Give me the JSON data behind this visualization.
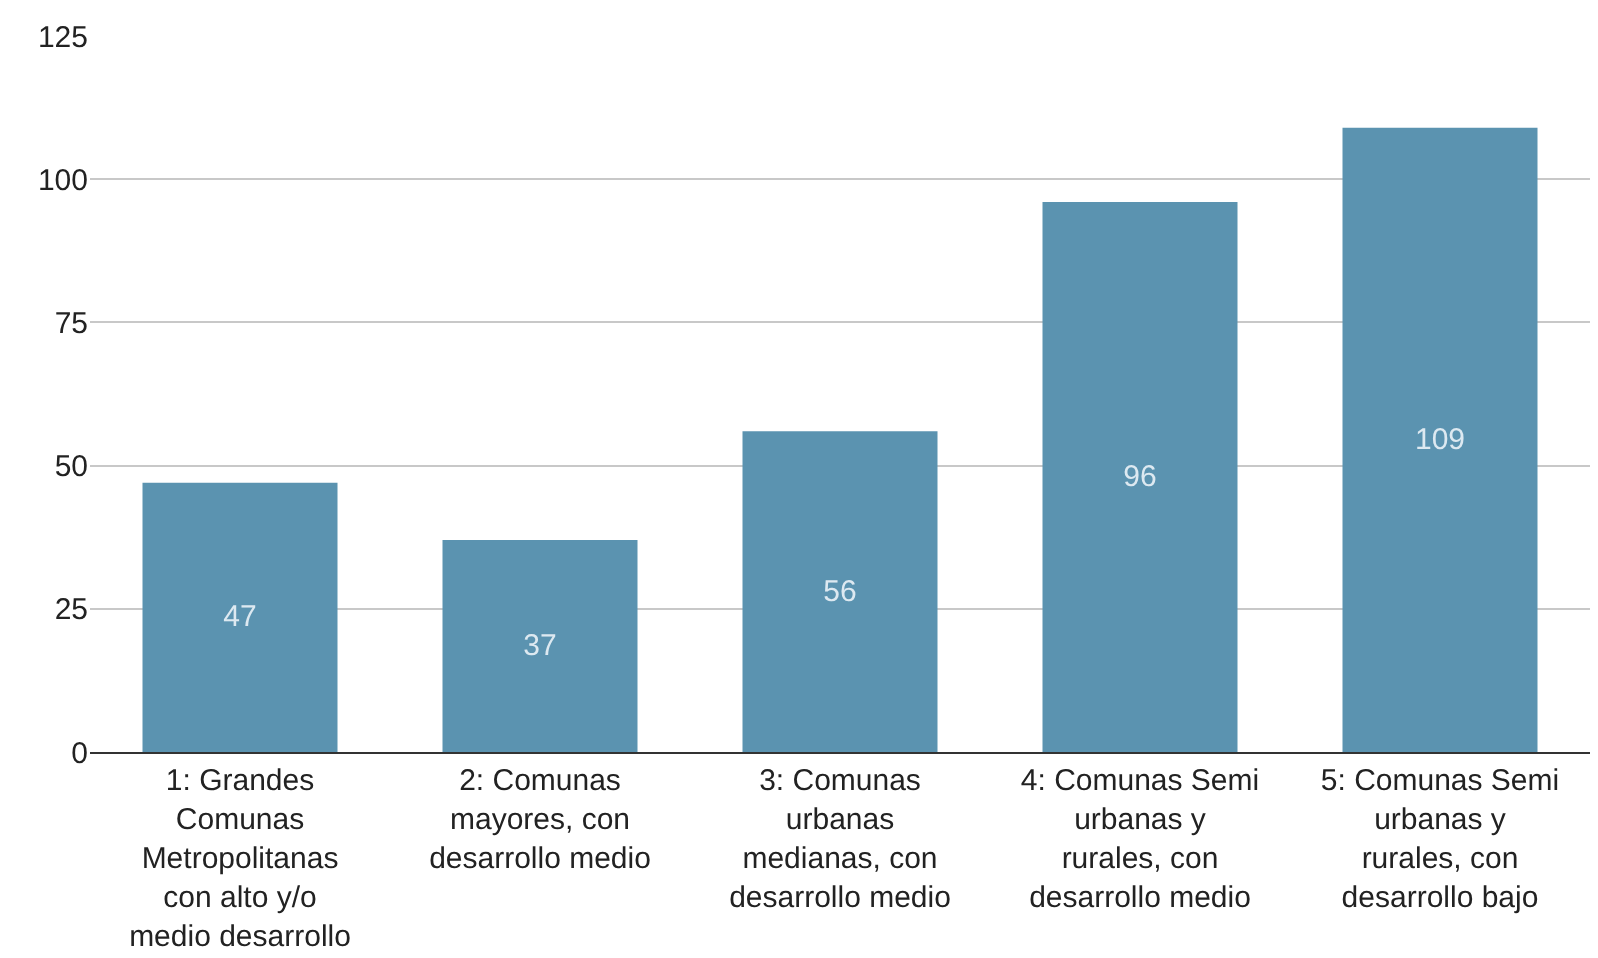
{
  "chart_data": {
    "type": "bar",
    "categories": [
      "1: Grandes Comunas Metropolitanas con alto y/o medio desarrollo",
      "2: Comunas mayores, con desarrollo medio",
      "3: Comunas urbanas medianas, con desarrollo medio",
      "4: Comunas Semi urbanas y rurales, con desarrollo medio",
      "5: Comunas Semi urbanas y rurales, con desarrollo bajo"
    ],
    "values": [
      47,
      37,
      56,
      96,
      109
    ],
    "color": "#5b93b0",
    "ylim": [
      0,
      125
    ],
    "yticks": [
      0,
      25,
      50,
      75,
      100,
      125
    ],
    "grid": "y",
    "data_labels": true
  }
}
